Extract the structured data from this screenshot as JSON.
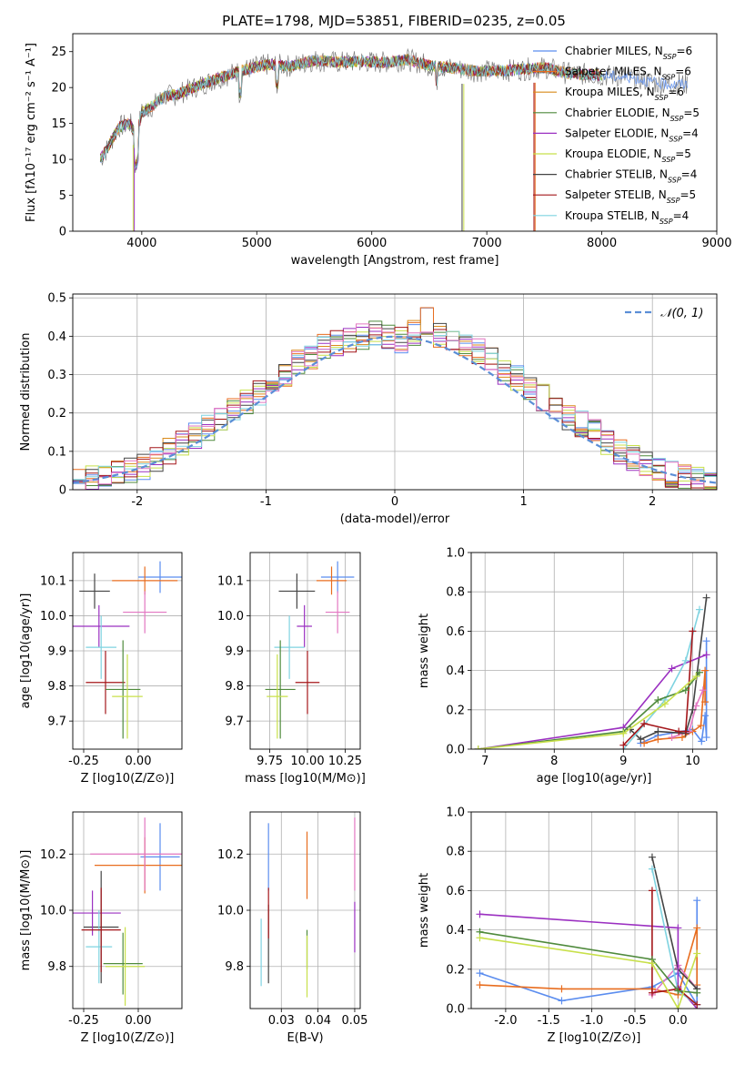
{
  "title": "PLATE=1798, MJD=53851, FIBERID=0235, z=0.05",
  "chart_data": [
    {
      "type": "line",
      "id": "spectrum",
      "title": "PLATE=1798, MJD=53851, FIBERID=0235, z=0.05",
      "xlabel": "wavelength [Angstrom, rest frame]",
      "ylabel": "Flux [fλ10⁻¹⁷ erg cm⁻² s⁻¹ A⁻¹]",
      "xlim": [
        3400,
        9000
      ],
      "ylim": [
        0,
        27.5
      ],
      "xticks": [
        4000,
        5000,
        6000,
        7000,
        8000,
        9000
      ],
      "yticks": [
        0,
        5,
        10,
        15,
        20,
        25
      ],
      "grid": false,
      "legend_position": "top-right",
      "data_envelope": {
        "x": [
          3640,
          3700,
          3800,
          3900,
          3950,
          4000,
          4100,
          4200,
          4300,
          4500,
          4700,
          4900,
          5100,
          5300,
          5500,
          5700,
          5900,
          6100,
          6300,
          6500,
          6700,
          6900,
          7100,
          7300,
          7500,
          7700,
          7900,
          8100,
          8300,
          8500,
          8700
        ],
        "y": [
          10.0,
          11.5,
          14.5,
          15.0,
          13.0,
          16.5,
          17.5,
          18.8,
          19.0,
          20.3,
          21.5,
          22.5,
          23.2,
          23.0,
          23.8,
          23.5,
          23.6,
          23.5,
          23.9,
          23.1,
          22.7,
          22.3,
          22.3,
          22.5,
          22.8,
          22.0,
          21.8,
          21.6,
          21.3,
          20.5,
          20.5
        ]
      },
      "series": [
        {
          "name": "Chabrier MILES, N_SSP=6",
          "color": "#5b8def"
        },
        {
          "name": "Salpeter MILES, N_SSP=6",
          "color": "#e86d1f"
        },
        {
          "name": "Kroupa MILES, N_SSP=6",
          "color": "#d98a1a"
        },
        {
          "name": "Chabrier ELODIE, N_SSP=5",
          "color": "#4f8a3c"
        },
        {
          "name": "Salpeter ELODIE, N_SSP=4",
          "color": "#9b30c1"
        },
        {
          "name": "Kroupa ELODIE, N_SSP=5",
          "color": "#c8e04a"
        },
        {
          "name": "Chabrier STELIB, N_SSP=4",
          "color": "#444444"
        },
        {
          "name": "Salpeter STELIB, N_SSP=5",
          "color": "#a4161a"
        },
        {
          "name": "Kroupa STELIB, N_SSP=4",
          "color": "#7fd3e0"
        }
      ],
      "legend_label_parts": [
        {
          "main": "Chabrier MILES, N",
          "sub": "SSP",
          "tail": "=6"
        },
        {
          "main": "Salpeter MILES, N",
          "sub": "SSP",
          "tail": "=6"
        },
        {
          "main": "Kroupa MILES, N",
          "sub": "SSP",
          "tail": "=6"
        },
        {
          "main": "Chabrier ELODIE, N",
          "sub": "SSP",
          "tail": "=5"
        },
        {
          "main": "Salpeter ELODIE, N",
          "sub": "SSP",
          "tail": "=4"
        },
        {
          "main": "Kroupa ELODIE, N",
          "sub": "SSP",
          "tail": "=5"
        },
        {
          "main": "Chabrier STELIB, N",
          "sub": "SSP",
          "tail": "=4"
        },
        {
          "main": "Salpeter STELIB, N",
          "sub": "SSP",
          "tail": "=5"
        },
        {
          "main": "Kroupa STELIB, N",
          "sub": "SSP",
          "tail": "=4"
        }
      ]
    },
    {
      "type": "area",
      "id": "residuals",
      "xlabel": "(data-model)/error",
      "ylabel": "Normed distribution",
      "xlim": [
        -2.5,
        2.5
      ],
      "ylim": [
        0,
        0.51
      ],
      "xticks": [
        -2,
        -1,
        0,
        1,
        2
      ],
      "yticks": [
        0.0,
        0.1,
        0.2,
        0.3,
        0.4,
        0.5
      ],
      "grid": true,
      "legend_position": "top-right",
      "legend": "𝒩(0, 1)",
      "reference_curve": {
        "name": "𝒩(0, 1)",
        "mean": 0,
        "sigma": 1,
        "color": "#5b8ed6"
      },
      "bin_edges": [
        -2.5,
        -2.4,
        -2.3,
        -2.2,
        -2.1,
        -2.0,
        -1.9,
        -1.8,
        -1.7,
        -1.6,
        -1.5,
        -1.4,
        -1.3,
        -1.2,
        -1.1,
        -1.0,
        -0.9,
        -0.8,
        -0.7,
        -0.6,
        -0.5,
        -0.4,
        -0.3,
        -0.2,
        -0.1,
        0.0,
        0.1,
        0.2,
        0.3,
        0.4,
        0.5,
        0.6,
        0.7,
        0.8,
        0.9,
        1.0,
        1.1,
        1.2,
        1.3,
        1.4,
        1.5,
        1.6,
        1.7,
        1.8,
        1.9,
        2.0,
        2.1,
        2.2,
        2.3,
        2.4,
        2.5
      ],
      "histogram": [
        0.02,
        0.03,
        0.03,
        0.04,
        0.05,
        0.06,
        0.08,
        0.1,
        0.12,
        0.14,
        0.16,
        0.18,
        0.21,
        0.23,
        0.25,
        0.28,
        0.3,
        0.33,
        0.35,
        0.37,
        0.38,
        0.39,
        0.4,
        0.41,
        0.4,
        0.39,
        0.41,
        0.44,
        0.4,
        0.39,
        0.37,
        0.36,
        0.34,
        0.31,
        0.29,
        0.26,
        0.24,
        0.21,
        0.19,
        0.17,
        0.15,
        0.12,
        0.1,
        0.08,
        0.07,
        0.05,
        0.04,
        0.03,
        0.03,
        0.02
      ],
      "series_colors": [
        "#5b8def",
        "#e86d1f",
        "#d98a1a",
        "#4f8a3c",
        "#9b30c1",
        "#c8e04a",
        "#444444",
        "#a4161a",
        "#7fd3e0",
        "#e377c2"
      ]
    },
    {
      "type": "scatter",
      "id": "age-vs-Z",
      "xlabel": "Z [log10(Z/Z⊙)]",
      "ylabel": "age [log10(age/yr)]",
      "xlim": [
        -0.3,
        0.2
      ],
      "ylim": [
        9.62,
        10.18
      ],
      "xticks": [
        -0.25,
        0.0
      ],
      "xtick_labels": [
        "-0.25",
        "0.00"
      ],
      "yticks": [
        9.7,
        9.8,
        9.9,
        10.0,
        10.1
      ],
      "ytick_labels": [
        "9.7",
        "9.8",
        "9.9",
        "10.0",
        "10.1"
      ],
      "grid": true,
      "points": [
        {
          "x": 0.1,
          "y": 10.11,
          "xerr": 0.1,
          "yerr": 0.045,
          "color": "#5b8def"
        },
        {
          "x": 0.03,
          "y": 10.1,
          "xerr": 0.15,
          "yerr": 0.04,
          "color": "#e86d1f"
        },
        {
          "x": 0.03,
          "y": 10.01,
          "xerr": 0.1,
          "yerr": 0.06,
          "color": "#e377c2"
        },
        {
          "x": -0.2,
          "y": 10.07,
          "xerr": 0.07,
          "yerr": 0.05,
          "color": "#444444"
        },
        {
          "x": -0.18,
          "y": 9.97,
          "xerr": 0.14,
          "yerr": 0.06,
          "color": "#9b30c1"
        },
        {
          "x": -0.17,
          "y": 9.91,
          "xerr": 0.07,
          "yerr": 0.09,
          "color": "#7fd3e0"
        },
        {
          "x": -0.15,
          "y": 9.81,
          "xerr": 0.09,
          "yerr": 0.09,
          "color": "#a4161a"
        },
        {
          "x": -0.07,
          "y": 9.79,
          "xerr": 0.08,
          "yerr": 0.14,
          "color": "#4f8a3c"
        },
        {
          "x": -0.05,
          "y": 9.77,
          "xerr": 0.07,
          "yerr": 0.12,
          "color": "#c8e04a"
        }
      ]
    },
    {
      "type": "scatter",
      "id": "age-vs-mass",
      "xlabel": "mass [log10(M/M⊙)]",
      "ylabel": "",
      "xlim": [
        9.62,
        10.35
      ],
      "ylim": [
        9.62,
        10.18
      ],
      "xticks": [
        9.75,
        10.0,
        10.25
      ],
      "xtick_labels": [
        "9.75",
        "10.00",
        "10.25"
      ],
      "yticks": [
        9.7,
        9.8,
        9.9,
        10.0,
        10.1
      ],
      "ytick_labels": [
        "9.7",
        "9.8",
        "9.9",
        "10.0",
        "10.1"
      ],
      "grid": true,
      "points": [
        {
          "x": 10.2,
          "y": 10.11,
          "xerr": 0.11,
          "yerr": 0.045,
          "color": "#5b8def"
        },
        {
          "x": 10.16,
          "y": 10.1,
          "xerr": 0.1,
          "yerr": 0.04,
          "color": "#e86d1f"
        },
        {
          "x": 10.2,
          "y": 10.01,
          "xerr": 0.08,
          "yerr": 0.06,
          "color": "#e377c2"
        },
        {
          "x": 9.93,
          "y": 10.07,
          "xerr": 0.12,
          "yerr": 0.05,
          "color": "#444444"
        },
        {
          "x": 9.98,
          "y": 9.97,
          "xerr": 0.05,
          "yerr": 0.06,
          "color": "#9b30c1"
        },
        {
          "x": 9.88,
          "y": 9.91,
          "xerr": 0.1,
          "yerr": 0.09,
          "color": "#7fd3e0"
        },
        {
          "x": 10.0,
          "y": 9.81,
          "xerr": 0.08,
          "yerr": 0.09,
          "color": "#a4161a"
        },
        {
          "x": 9.82,
          "y": 9.79,
          "xerr": 0.1,
          "yerr": 0.14,
          "color": "#4f8a3c"
        },
        {
          "x": 9.8,
          "y": 9.77,
          "xerr": 0.07,
          "yerr": 0.12,
          "color": "#c8e04a"
        }
      ]
    },
    {
      "type": "line",
      "id": "mass-weight-vs-age",
      "xlabel": "age [log10(age/yr)]",
      "ylabel": "mass weight",
      "xlim": [
        6.8,
        10.35
      ],
      "ylim": [
        0,
        1
      ],
      "xticks": [
        7,
        8,
        9,
        10
      ],
      "xtick_labels": [
        "7",
        "8",
        "9",
        "10"
      ],
      "yticks": [
        0.0,
        0.2,
        0.4,
        0.6,
        0.8,
        1.0
      ],
      "ytick_labels": [
        "0.0",
        "0.2",
        "0.4",
        "0.6",
        "0.8",
        "1.0"
      ],
      "grid": true,
      "series": [
        {
          "color": "#5b8def",
          "x": [
            9.25,
            9.5,
            10.0,
            10.13,
            10.18,
            10.2,
            10.2
          ],
          "y": [
            0.03,
            0.07,
            0.1,
            0.04,
            0.17,
            0.06,
            0.55
          ]
        },
        {
          "color": "#e86d1f",
          "x": [
            9.3,
            9.5,
            9.85,
            10.0,
            10.12,
            10.18,
            10.18
          ],
          "y": [
            0.03,
            0.05,
            0.06,
            0.09,
            0.12,
            0.4,
            0.24
          ]
        },
        {
          "color": "#e377c2",
          "x": [
            9.7,
            9.95,
            10.05,
            10.15
          ],
          "y": [
            0.06,
            0.09,
            0.22,
            0.3
          ]
        },
        {
          "color": "#444444",
          "x": [
            9.1,
            9.25,
            9.5,
            9.9,
            10.0,
            10.2
          ],
          "y": [
            0.1,
            0.05,
            0.09,
            0.08,
            0.2,
            0.77
          ]
        },
        {
          "color": "#9b30c1",
          "x": [
            6.9,
            9.0,
            9.7,
            10.2
          ],
          "y": [
            0.0,
            0.11,
            0.41,
            0.48
          ]
        },
        {
          "color": "#7fd3e0",
          "x": [
            9.0,
            9.6,
            9.9,
            10.1
          ],
          "y": [
            0.0,
            0.25,
            0.45,
            0.71
          ]
        },
        {
          "color": "#a4161a",
          "x": [
            9.0,
            9.3,
            9.8,
            9.9,
            10.0
          ],
          "y": [
            0.02,
            0.13,
            0.09,
            0.09,
            0.6
          ]
        },
        {
          "color": "#4f8a3c",
          "x": [
            6.9,
            9.0,
            9.5,
            9.9,
            10.1
          ],
          "y": [
            0.0,
            0.09,
            0.25,
            0.3,
            0.39
          ]
        },
        {
          "color": "#c8e04a",
          "x": [
            6.9,
            9.0,
            9.6,
            10.05
          ],
          "y": [
            0.0,
            0.08,
            0.23,
            0.37
          ]
        }
      ]
    },
    {
      "type": "scatter",
      "id": "mass-vs-Z",
      "xlabel": "Z [log10(Z/Z⊙)]",
      "ylabel": "mass [log10(M/M⊙)]",
      "xlim": [
        -0.3,
        0.2
      ],
      "ylim": [
        9.65,
        10.35
      ],
      "xticks": [
        -0.25,
        0.0
      ],
      "xtick_labels": [
        "-0.25",
        "0.00"
      ],
      "yticks": [
        9.8,
        10.0,
        10.2
      ],
      "ytick_labels": [
        "9.8",
        "10.0",
        "10.2"
      ],
      "grid": true,
      "points": [
        {
          "x": 0.1,
          "y": 10.19,
          "xerr": 0.09,
          "yerr": 0.12,
          "color": "#5b8def"
        },
        {
          "x": 0.03,
          "y": 10.16,
          "xerr": 0.23,
          "yerr": 0.1,
          "color": "#e86d1f"
        },
        {
          "x": 0.03,
          "y": 10.2,
          "xerr": 0.25,
          "yerr": 0.13,
          "color": "#e377c2"
        },
        {
          "x": -0.17,
          "y": 9.94,
          "xerr": 0.08,
          "yerr": 0.2,
          "color": "#444444"
        },
        {
          "x": -0.21,
          "y": 9.99,
          "xerr": 0.13,
          "yerr": 0.08,
          "color": "#9b30c1"
        },
        {
          "x": -0.18,
          "y": 9.87,
          "xerr": 0.06,
          "yerr": 0.13,
          "color": "#7fd3e0"
        },
        {
          "x": -0.17,
          "y": 9.93,
          "xerr": 0.09,
          "yerr": 0.15,
          "color": "#a4161a"
        },
        {
          "x": -0.07,
          "y": 9.81,
          "xerr": 0.09,
          "yerr": 0.11,
          "color": "#4f8a3c"
        },
        {
          "x": -0.06,
          "y": 9.8,
          "xerr": 0.09,
          "yerr": 0.14,
          "color": "#c8e04a"
        }
      ]
    },
    {
      "type": "scatter",
      "id": "mass-vs-EBV",
      "xlabel": "E(B-V)",
      "ylabel": "",
      "xlim": [
        0.0215,
        0.0515
      ],
      "ylim": [
        9.65,
        10.35
      ],
      "xticks": [
        0.03,
        0.04,
        0.05
      ],
      "xtick_labels": [
        "0.03",
        "0.04",
        "0.05"
      ],
      "yticks": [
        9.8,
        10.0,
        10.2
      ],
      "ytick_labels": [
        "9.8",
        "10.0",
        "10.2"
      ],
      "grid": true,
      "points": [
        {
          "x": 0.0265,
          "y": 10.19,
          "xerr": 0,
          "yerr": 0.12,
          "color": "#5b8def"
        },
        {
          "x": 0.037,
          "y": 10.16,
          "xerr": 0,
          "yerr": 0.12,
          "color": "#e86d1f"
        },
        {
          "x": 0.05,
          "y": 10.2,
          "xerr": 0,
          "yerr": 0.13,
          "color": "#e377c2"
        },
        {
          "x": 0.0265,
          "y": 9.88,
          "xerr": 0,
          "yerr": 0.14,
          "color": "#444444"
        },
        {
          "x": 0.05,
          "y": 9.94,
          "xerr": 0,
          "yerr": 0.09,
          "color": "#9b30c1"
        },
        {
          "x": 0.0245,
          "y": 9.85,
          "xerr": 0,
          "yerr": 0.12,
          "color": "#7fd3e0"
        },
        {
          "x": 0.0265,
          "y": 9.99,
          "xerr": 0,
          "yerr": 0.09,
          "color": "#a4161a"
        },
        {
          "x": 0.037,
          "y": 9.86,
          "xerr": 0,
          "yerr": 0.07,
          "color": "#4f8a3c"
        },
        {
          "x": 0.037,
          "y": 9.8,
          "xerr": 0,
          "yerr": 0.11,
          "color": "#c8e04a"
        }
      ]
    },
    {
      "type": "line",
      "id": "mass-weight-vs-Z",
      "xlabel": "Z [log10(Z/Z⊙)]",
      "ylabel": "mass weight",
      "xlim": [
        -2.4,
        0.45
      ],
      "ylim": [
        0,
        1
      ],
      "xticks": [
        -2.0,
        -1.5,
        -1.0,
        -0.5,
        0.0
      ],
      "xtick_labels": [
        "-2.0",
        "-1.5",
        "-1.0",
        "-0.5",
        "0.0"
      ],
      "yticks": [
        0.0,
        0.2,
        0.4,
        0.6,
        0.8,
        1.0
      ],
      "ytick_labels": [
        "0.0",
        "0.2",
        "0.4",
        "0.6",
        "0.8",
        "1.0"
      ],
      "grid": true,
      "series": [
        {
          "color": "#5b8def",
          "x": [
            -2.3,
            -1.35,
            -0.3,
            0.0,
            0.22,
            0.22
          ],
          "y": [
            0.18,
            0.04,
            0.11,
            0.18,
            0.02,
            0.55
          ]
        },
        {
          "color": "#e86d1f",
          "x": [
            -2.3,
            -1.35,
            -0.3,
            0.0,
            0.22,
            0.22
          ],
          "y": [
            0.12,
            0.1,
            0.1,
            0.07,
            0.41,
            0.12
          ]
        },
        {
          "color": "#e377c2",
          "x": [
            -0.3,
            0.0,
            0.22
          ],
          "y": [
            0.07,
            0.22,
            0.1
          ]
        },
        {
          "color": "#444444",
          "x": [
            -0.3,
            0.0,
            0.22
          ],
          "y": [
            0.77,
            0.2,
            0.1
          ]
        },
        {
          "color": "#9b30c1",
          "x": [
            -2.3,
            0.0,
            0.0,
            0.22
          ],
          "y": [
            0.48,
            0.41,
            0.11,
            0.0
          ]
        },
        {
          "color": "#7fd3e0",
          "x": [
            -0.3,
            0.0,
            0.22
          ],
          "y": [
            0.71,
            0.09,
            0.02
          ]
        },
        {
          "color": "#a4161a",
          "x": [
            -0.3,
            -0.3,
            0.0,
            0.22
          ],
          "y": [
            0.6,
            0.08,
            0.1,
            0.02
          ]
        },
        {
          "color": "#4f8a3c",
          "x": [
            -2.3,
            -0.3,
            0.0,
            0.22
          ],
          "y": [
            0.39,
            0.25,
            0.09,
            0.08
          ]
        },
        {
          "color": "#c8e04a",
          "x": [
            -2.3,
            -0.3,
            0.0,
            0.22
          ],
          "y": [
            0.36,
            0.23,
            0.0,
            0.28
          ]
        }
      ]
    }
  ]
}
